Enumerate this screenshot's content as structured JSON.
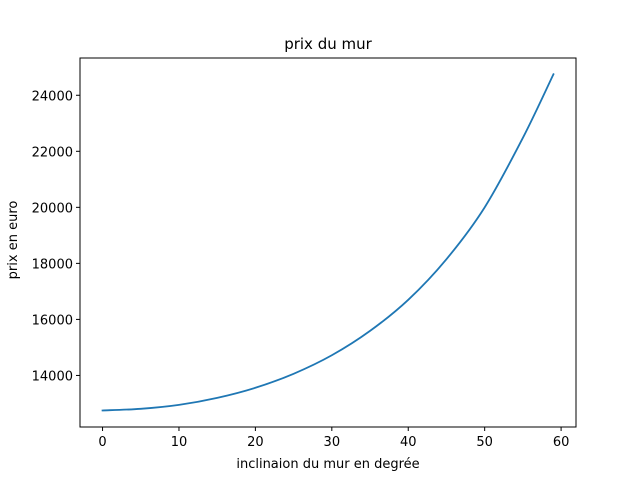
{
  "chart_data": {
    "type": "line",
    "title": "prix du mur",
    "xlabel": "inclinaion du mur en degrée",
    "ylabel": "prix en euro",
    "xlim": [
      -2.95,
      61.95
    ],
    "ylim": [
      12160,
      25330
    ],
    "xticks": [
      0,
      10,
      20,
      30,
      40,
      50,
      60
    ],
    "yticks": [
      14000,
      16000,
      18000,
      20000,
      22000,
      24000
    ],
    "grid": false,
    "legend": "none",
    "series": [
      {
        "color": "#1f77b4",
        "x": [
          0,
          5,
          10,
          15,
          20,
          25,
          30,
          35,
          40,
          45,
          50,
          55,
          59
        ],
        "y": [
          12750,
          12810,
          12950,
          13200,
          13560,
          14060,
          14720,
          15590,
          16700,
          18150,
          20000,
          22480,
          24750
        ]
      }
    ]
  }
}
